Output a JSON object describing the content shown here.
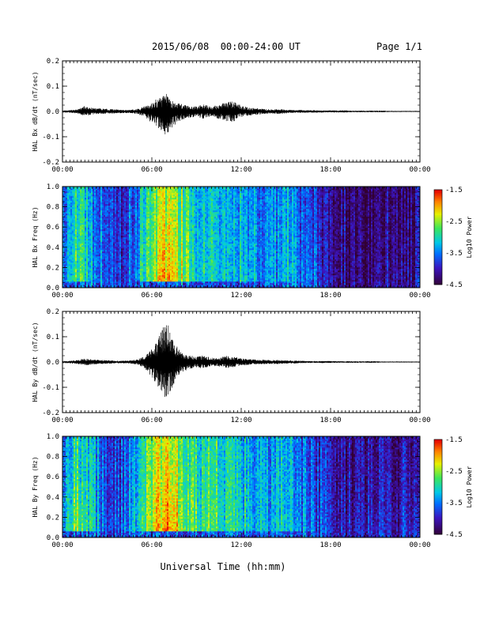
{
  "header": {
    "title": "2015/06/08  00:00-24:00 UT",
    "page": "Page 1/1"
  },
  "footer": {
    "xlabel": "Universal Time (hh:mm)"
  },
  "x_ticks": [
    "00:00",
    "06:00",
    "12:00",
    "18:00",
    "00:00"
  ],
  "chart_data": [
    {
      "type": "line",
      "title": "",
      "ylabel": "HAL Bx dB/dt (nT/sec)",
      "xlabel": "",
      "xlim": [
        0,
        24
      ],
      "ylim": [
        -0.2,
        0.2
      ],
      "y_ticks": [
        "0.2",
        "0.1",
        "0.0",
        "-0.1",
        "-0.2"
      ],
      "grid": false,
      "series": [
        {
          "x": [
            0,
            0.5,
            1,
            1.5,
            2,
            2.5,
            3,
            3.5,
            4,
            4.5,
            5,
            5.5,
            6,
            6.5,
            7,
            7.5,
            8,
            8.5,
            9,
            9.5,
            10,
            10.5,
            11,
            11.5,
            12,
            12.5,
            13,
            13.5,
            14,
            14.5,
            15,
            15.5,
            16,
            16.5,
            17,
            17.5,
            18,
            18.5,
            19,
            19.5,
            20,
            20.5,
            21,
            21.5,
            22,
            22.5,
            23,
            23.5,
            24
          ],
          "envelope_max": [
            0.004,
            0.005,
            0.008,
            0.022,
            0.014,
            0.012,
            0.01,
            0.009,
            0.007,
            0.006,
            0.01,
            0.02,
            0.034,
            0.058,
            0.07,
            0.036,
            0.03,
            0.022,
            0.02,
            0.028,
            0.018,
            0.028,
            0.036,
            0.044,
            0.024,
            0.015,
            0.014,
            0.01,
            0.008,
            0.01,
            0.008,
            0.006,
            0.006,
            0.005,
            0.005,
            0.004,
            0.004,
            0.004,
            0.004,
            0.003,
            0.003,
            0.003,
            0.003,
            0.003,
            0.002,
            0.002,
            0.002,
            0.002,
            0.002
          ],
          "envelope_min": [
            -0.004,
            -0.005,
            -0.008,
            -0.018,
            -0.012,
            -0.01,
            -0.009,
            -0.008,
            -0.007,
            -0.006,
            -0.01,
            -0.022,
            -0.046,
            -0.072,
            -0.1,
            -0.055,
            -0.035,
            -0.025,
            -0.02,
            -0.03,
            -0.018,
            -0.03,
            -0.04,
            -0.042,
            -0.022,
            -0.016,
            -0.014,
            -0.01,
            -0.008,
            -0.01,
            -0.008,
            -0.006,
            -0.006,
            -0.005,
            -0.005,
            -0.004,
            -0.004,
            -0.004,
            -0.004,
            -0.003,
            -0.003,
            -0.003,
            -0.003,
            -0.003,
            -0.002,
            -0.002,
            -0.002,
            -0.002,
            -0.002
          ]
        }
      ]
    },
    {
      "type": "heatmap",
      "title": "",
      "ylabel": "HAL Bx Freq (Hz)",
      "xlabel": "",
      "xlim": [
        0,
        24
      ],
      "ylim": [
        0.0,
        1.0
      ],
      "y_ticks": [
        "1.0",
        "0.8",
        "0.6",
        "0.4",
        "0.2",
        "0.0"
      ],
      "colorbar": {
        "label": "Log10 Power",
        "min": -4.5,
        "max": -1.5,
        "ticks": [
          "-1.5",
          "-2.5",
          "-3.5",
          "-4.5"
        ]
      },
      "time_hours": [
        0,
        1,
        2,
        3,
        4,
        5,
        6,
        7,
        8,
        9,
        10,
        11,
        12,
        13,
        14,
        15,
        16,
        17,
        18,
        19,
        20,
        21,
        22,
        23
      ],
      "level_lowfreq": [
        -3.4,
        -2.7,
        -3.2,
        -3.7,
        -3.8,
        -3.3,
        -2.4,
        -1.8,
        -2.3,
        -2.9,
        -2.8,
        -3.1,
        -3.0,
        -3.2,
        -3.4,
        -3.1,
        -3.4,
        -3.6,
        -4.0,
        -4.1,
        -4.2,
        -4.0,
        -4.1,
        -4.0
      ],
      "level_highfreq": [
        -3.6,
        -3.0,
        -3.4,
        -3.8,
        -3.9,
        -3.5,
        -2.6,
        -2.4,
        -2.7,
        -3.1,
        -3.0,
        -3.2,
        -3.3,
        -3.4,
        -3.5,
        -3.3,
        -3.7,
        -3.9,
        -4.1,
        -4.2,
        -4.3,
        -4.2,
        -4.3,
        -4.2
      ]
    },
    {
      "type": "line",
      "title": "",
      "ylabel": "HAL By dB/dt (nT/sec)",
      "xlabel": "",
      "xlim": [
        0,
        24
      ],
      "ylim": [
        -0.2,
        0.2
      ],
      "y_ticks": [
        "0.2",
        "0.1",
        "0.0",
        "-0.1",
        "-0.2"
      ],
      "grid": false,
      "series": [
        {
          "x": [
            0,
            0.5,
            1,
            1.5,
            2,
            2.5,
            3,
            3.5,
            4,
            4.5,
            5,
            5.5,
            6,
            6.5,
            7,
            7.5,
            8,
            8.5,
            9,
            9.5,
            10,
            10.5,
            11,
            11.5,
            12,
            12.5,
            13,
            13.5,
            14,
            14.5,
            15,
            15.5,
            16,
            16.5,
            17,
            17.5,
            18,
            18.5,
            19,
            19.5,
            20,
            20.5,
            21,
            21.5,
            22,
            22.5,
            23,
            23.5,
            24
          ],
          "envelope_max": [
            0.004,
            0.005,
            0.008,
            0.014,
            0.01,
            0.008,
            0.007,
            0.006,
            0.005,
            0.006,
            0.01,
            0.022,
            0.052,
            0.11,
            0.17,
            0.08,
            0.04,
            0.026,
            0.022,
            0.026,
            0.016,
            0.018,
            0.024,
            0.02,
            0.014,
            0.012,
            0.01,
            0.009,
            0.008,
            0.008,
            0.006,
            0.006,
            0.005,
            0.004,
            0.004,
            0.004,
            0.004,
            0.003,
            0.003,
            0.003,
            0.003,
            0.003,
            0.003,
            0.002,
            0.002,
            0.002,
            0.002,
            0.002,
            0.002
          ],
          "envelope_min": [
            -0.004,
            -0.005,
            -0.008,
            -0.014,
            -0.01,
            -0.008,
            -0.007,
            -0.006,
            -0.005,
            -0.006,
            -0.01,
            -0.024,
            -0.06,
            -0.11,
            -0.155,
            -0.085,
            -0.042,
            -0.028,
            -0.022,
            -0.026,
            -0.016,
            -0.018,
            -0.024,
            -0.02,
            -0.014,
            -0.012,
            -0.01,
            -0.009,
            -0.008,
            -0.008,
            -0.006,
            -0.006,
            -0.005,
            -0.004,
            -0.004,
            -0.004,
            -0.004,
            -0.003,
            -0.003,
            -0.003,
            -0.003,
            -0.003,
            -0.003,
            -0.002,
            -0.002,
            -0.002,
            -0.002,
            -0.002,
            -0.002
          ]
        }
      ]
    },
    {
      "type": "heatmap",
      "title": "",
      "ylabel": "HAL By Freq (Hz)",
      "xlabel": "",
      "xlim": [
        0,
        24
      ],
      "ylim": [
        0.0,
        1.0
      ],
      "y_ticks": [
        "1.0",
        "0.8",
        "0.6",
        "0.4",
        "0.2",
        "0.0"
      ],
      "colorbar": {
        "label": "Log10 Power",
        "min": -4.5,
        "max": -1.5,
        "ticks": [
          "-1.5",
          "-2.5",
          "-3.5",
          "-4.5"
        ]
      },
      "time_hours": [
        0,
        1,
        2,
        3,
        4,
        5,
        6,
        7,
        8,
        9,
        10,
        11,
        12,
        13,
        14,
        15,
        16,
        17,
        18,
        19,
        20,
        21,
        22,
        23
      ],
      "level_lowfreq": [
        -3.0,
        -2.4,
        -3.0,
        -3.5,
        -3.6,
        -3.2,
        -2.3,
        -1.7,
        -2.2,
        -2.7,
        -2.6,
        -2.9,
        -2.9,
        -3.1,
        -3.2,
        -3.0,
        -3.3,
        -3.5,
        -3.8,
        -3.9,
        -4.0,
        -3.8,
        -3.9,
        -3.8
      ],
      "level_highfreq": [
        -3.5,
        -2.9,
        -3.3,
        -3.7,
        -3.8,
        -3.4,
        -2.5,
        -2.3,
        -2.6,
        -3.0,
        -2.9,
        -3.1,
        -3.2,
        -3.3,
        -3.4,
        -3.2,
        -3.6,
        -3.8,
        -4.0,
        -4.1,
        -4.2,
        -4.1,
        -4.2,
        -4.1
      ]
    }
  ]
}
